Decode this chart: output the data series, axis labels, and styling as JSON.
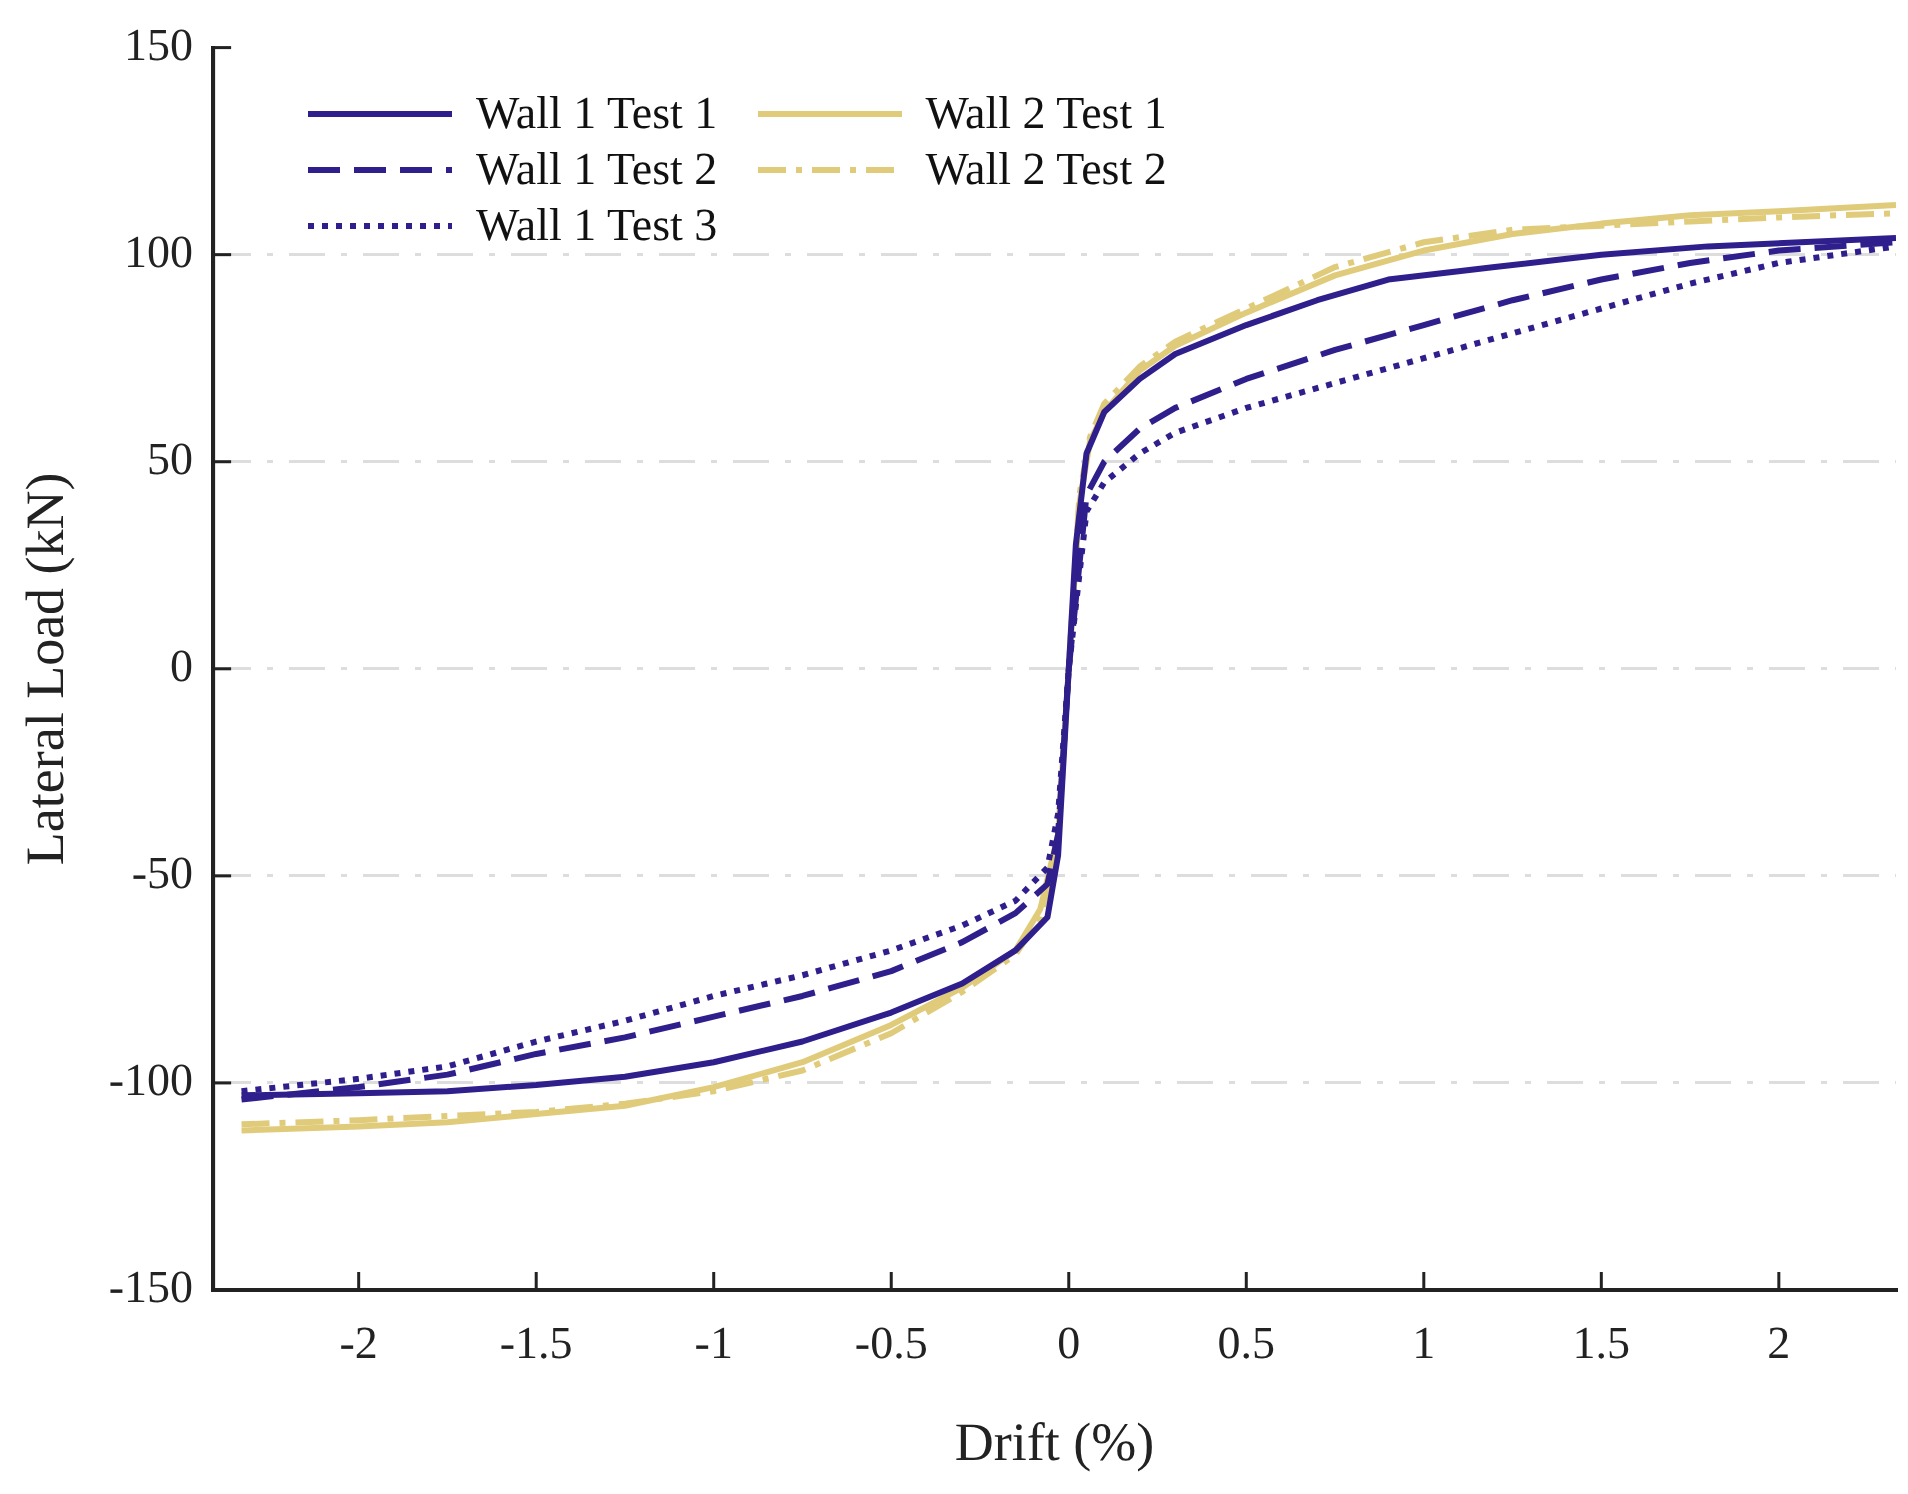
{
  "chart_data": {
    "type": "line",
    "xlabel": "Drift (%)",
    "ylabel": "Lateral Load (kN)",
    "xlim": [
      -2.41,
      2.33
    ],
    "ylim": [
      -150,
      150
    ],
    "xticks": [
      -2,
      -1.5,
      -1,
      -0.5,
      0,
      0.5,
      1,
      1.5,
      2
    ],
    "yticks": [
      -150,
      -100,
      -50,
      0,
      50,
      100,
      150
    ],
    "grid": "y",
    "legend": "top left",
    "marker": "none",
    "series": [
      {
        "name": "Wall 1 Test 1",
        "color": "#2e1f8c",
        "line_style": "solid",
        "x": [
          -2.33,
          -2,
          -1.75,
          -1.5,
          -1.25,
          -1,
          -0.75,
          -0.5,
          -0.3,
          -0.15,
          -0.06,
          -0.03,
          0,
          0.02,
          0.05,
          0.1,
          0.2,
          0.3,
          0.5,
          0.7,
          0.9,
          1.2,
          1.5,
          1.8,
          2.33
        ],
        "values": [
          -103,
          -102.5,
          -102,
          -100.5,
          -98.5,
          -95,
          -90,
          -83,
          -76,
          -68,
          -60,
          -45,
          0,
          30,
          52,
          62,
          70,
          76,
          83,
          89,
          94,
          97,
          100,
          102,
          104
        ]
      },
      {
        "name": "Wall 1 Test 2",
        "color": "#2e1f8c",
        "line_style": "dashed",
        "x": [
          -2.33,
          -2,
          -1.75,
          -1.5,
          -1.25,
          -1,
          -0.75,
          -0.5,
          -0.3,
          -0.15,
          -0.06,
          -0.03,
          0,
          0.05,
          0.1,
          0.2,
          0.3,
          0.5,
          0.75,
          1,
          1.25,
          1.5,
          1.75,
          2,
          2.33
        ],
        "values": [
          -104,
          -101,
          -98,
          -93,
          -89,
          -84,
          -79,
          -73,
          -66,
          -59,
          -52,
          -40,
          0,
          42,
          50,
          58,
          63,
          70,
          77,
          83,
          89,
          94,
          98,
          101,
          103
        ]
      },
      {
        "name": "Wall 1 Test 3",
        "color": "#2e1f8c",
        "line_style": "dotted",
        "x": [
          -2.33,
          -2,
          -1.75,
          -1.5,
          -1.25,
          -1,
          -0.75,
          -0.5,
          -0.3,
          -0.15,
          -0.06,
          -0.03,
          0,
          0.05,
          0.1,
          0.2,
          0.3,
          0.5,
          0.75,
          1,
          1.25,
          1.5,
          1.75,
          2,
          2.33
        ],
        "values": [
          -102,
          -99,
          -96,
          -90,
          -85,
          -79,
          -74,
          -68,
          -62,
          -56,
          -48,
          -35,
          0,
          38,
          45,
          52,
          57,
          63,
          69,
          75,
          81,
          87,
          93,
          98,
          102
        ]
      },
      {
        "name": "Wall 2 Test 1",
        "color": "#e0cb7b",
        "line_style": "solid",
        "x": [
          -2.33,
          -2,
          -1.75,
          -1.5,
          -1.25,
          -1,
          -0.75,
          -0.5,
          -0.3,
          -0.15,
          -0.08,
          -0.03,
          0,
          0.03,
          0.06,
          0.1,
          0.2,
          0.3,
          0.5,
          0.75,
          1,
          1.25,
          1.5,
          1.75,
          2,
          2.33
        ],
        "values": [
          -111.5,
          -110.5,
          -109.5,
          -107.5,
          -105.5,
          -101,
          -95,
          -86,
          -77,
          -68,
          -58,
          -40,
          0,
          40,
          55,
          62,
          72,
          78,
          86,
          95,
          101,
          105,
          107.5,
          109.5,
          110.5,
          112
        ]
      },
      {
        "name": "Wall 2 Test 2",
        "color": "#e0cb7b",
        "line_style": "dashdot",
        "x": [
          -2.33,
          -2,
          -1.75,
          -1.5,
          -1.25,
          -1,
          -0.75,
          -0.5,
          -0.3,
          -0.15,
          -0.08,
          -0.03,
          0,
          0.03,
          0.06,
          0.1,
          0.2,
          0.3,
          0.5,
          0.75,
          1,
          1.25,
          1.5,
          1.75,
          2,
          2.33
        ],
        "values": [
          -110,
          -109,
          -108,
          -107,
          -105,
          -102,
          -97,
          -88,
          -78,
          -69,
          -60,
          -42,
          0,
          42,
          56,
          64,
          73,
          79,
          87,
          97,
          103,
          106,
          107,
          108,
          109,
          110
        ]
      }
    ]
  }
}
